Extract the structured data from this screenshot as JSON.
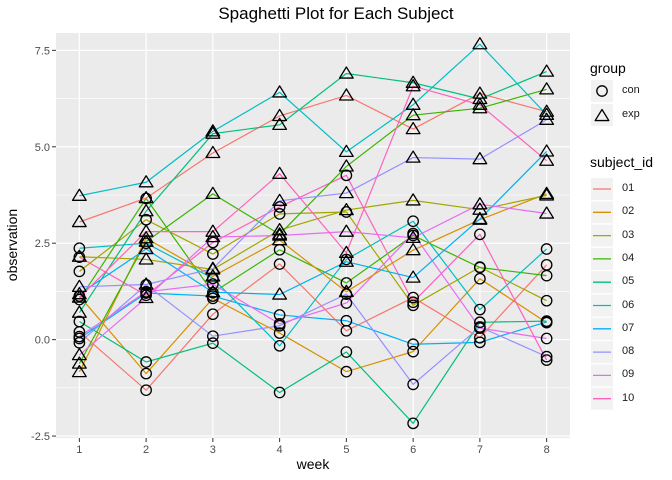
{
  "chart_data": {
    "type": "line",
    "title": "Spaghetti Plot for Each Subject",
    "xlabel": "week",
    "ylabel": "observation",
    "x": [
      1,
      2,
      3,
      4,
      5,
      6,
      7,
      8
    ],
    "x_ticks": [
      "1",
      "2",
      "3",
      "4",
      "5",
      "6",
      "7",
      "8"
    ],
    "y_ticks": [
      "-2.5",
      "0.0",
      "2.5",
      "5.0",
      "7.5"
    ],
    "y_tick_values": [
      -2.5,
      0.0,
      2.5,
      5.0,
      7.5
    ],
    "xlim": [
      0.65,
      8.35
    ],
    "ylim": [
      -2.55,
      7.95
    ],
    "grid": true,
    "legend_position": "right",
    "shape_legend": {
      "title": "group",
      "items": [
        {
          "label": "con",
          "shape": "circle"
        },
        {
          "label": "exp",
          "shape": "triangle"
        }
      ]
    },
    "color_legend": {
      "title": "subject_id",
      "items": [
        {
          "label": "01",
          "color": "#F8766D"
        },
        {
          "label": "02",
          "color": "#D89000"
        },
        {
          "label": "03",
          "color": "#A3A500"
        },
        {
          "label": "04",
          "color": "#39B600"
        },
        {
          "label": "05",
          "color": "#00BF7D"
        },
        {
          "label": "06",
          "color": "#00BFC4"
        },
        {
          "label": "07",
          "color": "#00B0F6"
        },
        {
          "label": "08",
          "color": "#9590FF"
        },
        {
          "label": "09",
          "color": "#E76BF3"
        },
        {
          "label": "10",
          "color": "#FF62BC"
        }
      ]
    },
    "series": [
      {
        "group": "con",
        "subject_id": "01",
        "values": [
          0.2,
          -1.31,
          0.66,
          1.96,
          0.23,
          1.09,
          0.05,
          1.94
        ]
      },
      {
        "group": "con",
        "subject_id": "02",
        "values": [
          1.13,
          -0.88,
          1.07,
          0.17,
          -0.83,
          -0.31,
          1.58,
          0.44
        ]
      },
      {
        "group": "con",
        "subject_id": "03",
        "values": [
          1.77,
          3.11,
          2.22,
          3.26,
          3.31,
          0.89,
          1.88,
          1.01
        ]
      },
      {
        "group": "con",
        "subject_id": "04",
        "values": [
          1.04,
          3.66,
          1.22,
          2.33,
          1.47,
          2.7,
          1.87,
          1.66
        ]
      },
      {
        "group": "con",
        "subject_id": "05",
        "values": [
          0.47,
          -0.58,
          -0.09,
          -1.37,
          -0.32,
          -2.17,
          0.45,
          0.48
        ]
      },
      {
        "group": "con",
        "subject_id": "06",
        "values": [
          2.37,
          2.5,
          1.59,
          -0.16,
          2.08,
          3.07,
          0.78,
          2.35
        ]
      },
      {
        "group": "con",
        "subject_id": "07",
        "values": [
          0.03,
          1.21,
          1.13,
          0.64,
          0.49,
          -0.12,
          -0.07,
          0.46
        ]
      },
      {
        "group": "con",
        "subject_id": "08",
        "values": [
          -0.08,
          1.42,
          0.09,
          0.36,
          1.18,
          -1.16,
          0.33,
          -0.44
        ]
      },
      {
        "group": "con",
        "subject_id": "09",
        "values": [
          0.08,
          1.24,
          1.44,
          0.41,
          0.95,
          2.75,
          0.3,
          0.03
        ]
      },
      {
        "group": "con",
        "subject_id": "10",
        "values": [
          2.14,
          1.15,
          2.52,
          3.44,
          4.26,
          0.97,
          2.73,
          -0.53
        ]
      },
      {
        "group": "exp",
        "subject_id": "01",
        "values": [
          3.05,
          3.67,
          4.84,
          5.8,
          6.33,
          5.46,
          6.38,
          5.91
        ]
      },
      {
        "group": "exp",
        "subject_id": "02",
        "values": [
          -0.84,
          2.63,
          1.64,
          2.58,
          1.24,
          2.32,
          3.11,
          3.78
        ]
      },
      {
        "group": "exp",
        "subject_id": "03",
        "values": [
          2.15,
          2.08,
          1.82,
          2.84,
          3.36,
          3.61,
          3.37,
          3.74
        ]
      },
      {
        "group": "exp",
        "subject_id": "04",
        "values": [
          -0.62,
          2.54,
          3.78,
          2.73,
          4.49,
          5.82,
          6.0,
          6.49
        ]
      },
      {
        "group": "exp",
        "subject_id": "05",
        "values": [
          0.7,
          3.33,
          5.34,
          5.57,
          6.9,
          6.66,
          6.24,
          6.95
        ]
      },
      {
        "group": "exp",
        "subject_id": "06",
        "values": [
          3.73,
          4.08,
          5.4,
          6.41,
          4.87,
          6.09,
          7.66,
          5.83
        ]
      },
      {
        "group": "exp",
        "subject_id": "07",
        "values": [
          1.18,
          2.35,
          1.23,
          1.17,
          2.02,
          1.61,
          3.13,
          4.88
        ]
      },
      {
        "group": "exp",
        "subject_id": "08",
        "values": [
          1.37,
          1.43,
          1.84,
          3.6,
          3.8,
          4.72,
          4.68,
          5.7
        ]
      },
      {
        "group": "exp",
        "subject_id": "09",
        "values": [
          -0.4,
          1.08,
          2.66,
          2.7,
          2.8,
          2.64,
          3.51,
          3.27
        ]
      },
      {
        "group": "exp",
        "subject_id": "10",
        "values": [
          1.09,
          2.8,
          2.8,
          4.3,
          2.25,
          6.57,
          6.09,
          4.64
        ]
      }
    ]
  }
}
